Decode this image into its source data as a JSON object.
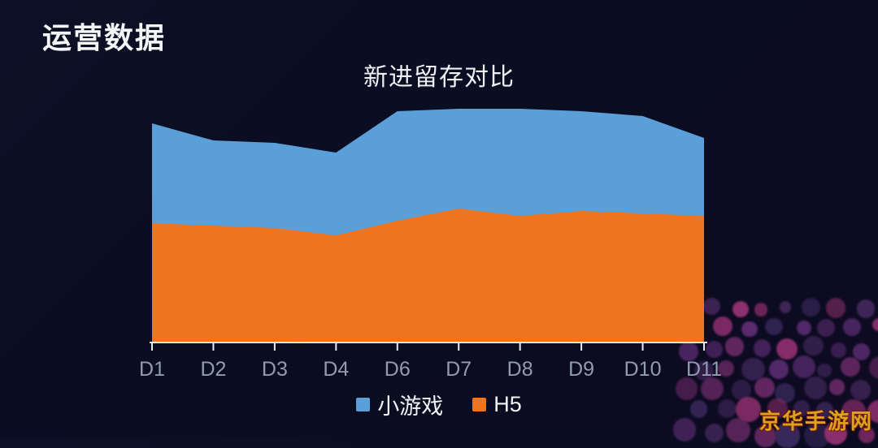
{
  "page": {
    "title": "运营数据",
    "watermark": "京华手游网"
  },
  "chart": {
    "title": "新进留存对比",
    "legend": [
      {
        "label": "小游戏",
        "color": "#5b9fd8"
      },
      {
        "label": "H5",
        "color": "#ee7420"
      }
    ]
  },
  "chart_data": {
    "type": "area",
    "stacked": true,
    "title": "新进留存对比",
    "categories": [
      "D1",
      "D2",
      "D3",
      "D4",
      "D6",
      "D7",
      "D8",
      "D9",
      "D10",
      "D11"
    ],
    "series": [
      {
        "name": "H5",
        "color": "#ee7420",
        "values": [
          49,
          48,
          47,
          44,
          50,
          55,
          52,
          54,
          53,
          52
        ]
      },
      {
        "name": "小游戏",
        "color": "#5b9fd8",
        "values": [
          41,
          35,
          35,
          34,
          45,
          41,
          44,
          41,
          40,
          32
        ]
      }
    ],
    "xlabel": "",
    "ylabel": "",
    "ylim": [
      0,
      100
    ],
    "grid": false,
    "legend_position": "bottom",
    "axis_color": "#e6e9f2",
    "tick_label_color": "#939bb0"
  },
  "decor": {
    "background": "#0b0e22",
    "dot_colors": [
      "#8e2f6e",
      "#5c2d73",
      "#3a2a5e",
      "#6b2a66",
      "#43285c"
    ],
    "watermark_color": "#d8a41e"
  }
}
